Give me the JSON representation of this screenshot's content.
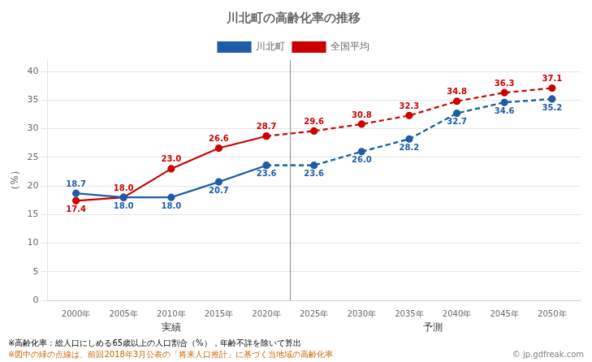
{
  "chart_data": {
    "type": "line",
    "title": "川北町の高齢化率の推移",
    "ylabel": "（%）",
    "xlim": [
      1997,
      2053
    ],
    "xticks": [
      {
        "value": 2000,
        "label": "2000年"
      },
      {
        "value": 2005,
        "label": "2005年"
      },
      {
        "value": 2010,
        "label": "2010年"
      },
      {
        "value": 2015,
        "label": "2015年"
      },
      {
        "value": 2020,
        "label": "2020年"
      },
      {
        "value": 2025,
        "label": "2025年"
      },
      {
        "value": 2030,
        "label": "2030年"
      },
      {
        "value": 2035,
        "label": "2035年"
      },
      {
        "value": 2040,
        "label": "2040年"
      },
      {
        "value": 2045,
        "label": "2045年"
      },
      {
        "value": 2050,
        "label": "2050年"
      }
    ],
    "ylim": [
      0,
      42
    ],
    "yticks": [
      0,
      5,
      10,
      15,
      20,
      25,
      30,
      35,
      40
    ],
    "grid": "y",
    "legend": "top",
    "series": [
      {
        "name": "川北町",
        "color": "#1f5ca8",
        "line_style": "solid",
        "marker": "circle",
        "data_labels": true,
        "x": [
          2000,
          2005,
          2010,
          2015,
          2020
        ],
        "values": [
          18.7,
          18.0,
          18.0,
          20.7,
          23.6
        ],
        "value_labels": [
          "18.7",
          "18.0",
          "18.0",
          "20.7",
          "23.6"
        ]
      },
      {
        "name": "川北町",
        "color": "#1f5ca8",
        "line_style": "dashed",
        "marker": "circle",
        "data_labels": true,
        "x": [
          2020,
          2025,
          2030,
          2035,
          2040,
          2045,
          2050
        ],
        "values": [
          23.6,
          23.6,
          26.0,
          28.2,
          32.7,
          34.6,
          35.2
        ],
        "value_labels": [
          "23.6",
          "23.6",
          "26.0",
          "28.2",
          "32.7",
          "34.6",
          "35.2"
        ]
      },
      {
        "name": "全国平均",
        "color": "#cc0000",
        "line_style": "solid",
        "marker": "circle",
        "data_labels": true,
        "x": [
          2000,
          2005,
          2010,
          2015,
          2020
        ],
        "values": [
          17.4,
          18.0,
          23.0,
          26.6,
          28.7
        ],
        "value_labels": [
          "17.4",
          "18.0",
          "23.0",
          "26.6",
          "28.7"
        ]
      },
      {
        "name": "全国平均",
        "color": "#cc0000",
        "line_style": "dashed",
        "marker": "circle",
        "data_labels": true,
        "x": [
          2020,
          2025,
          2030,
          2035,
          2040,
          2045,
          2050
        ],
        "values": [
          28.7,
          29.6,
          30.8,
          32.3,
          34.8,
          36.3,
          37.1
        ],
        "value_labels": [
          "28.7",
          "29.6",
          "30.8",
          "32.3",
          "34.8",
          "36.3",
          "37.1"
        ]
      },
      {
        "color": "#00aa00",
        "line_style": "dashed",
        "marker": "none",
        "data_labels": false,
        "x": [
          2020,
          2025,
          2030,
          2035,
          2040,
          2045,
          2050
        ],
        "values": [
          23.6,
          23.6,
          26.0,
          28.2,
          32.7,
          34.6,
          35.2
        ]
      }
    ],
    "divider_x": 2022.5,
    "annotations": [
      {
        "text": "実績",
        "x": 2010
      },
      {
        "text": "予測",
        "x": 2037.5
      }
    ],
    "footnotes": [
      {
        "text": "※高齢化率：総人口にしめる65歳以上の人口割合（%），年齢不詳を除いて算出",
        "color": "#000000"
      },
      {
        "text": "※図中の緑の点線は、前回2018年3月公表の「将来人口推計」に基づく当地域の高齢化率",
        "color": "#cc6600"
      }
    ],
    "watermark": "© jp.gdfreak.com"
  }
}
